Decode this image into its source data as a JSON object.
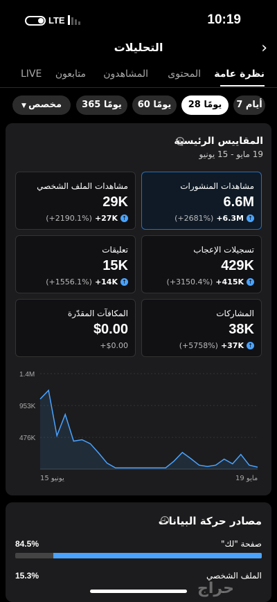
{
  "status": {
    "time": "10:19",
    "network": "LTE"
  },
  "header": {
    "title": "التحليلات",
    "back_icon": "chevron-right-icon"
  },
  "tabs": [
    {
      "label": "نظرة عامة",
      "active": true
    },
    {
      "label": "المحتوى",
      "active": false
    },
    {
      "label": "المشاهدون",
      "active": false
    },
    {
      "label": "متابعون",
      "active": false
    },
    {
      "label": "LIVE",
      "active": false
    }
  ],
  "ranges": [
    {
      "label": "7 أيام",
      "active": false
    },
    {
      "label": "28 يومًا",
      "active": true
    },
    {
      "label": "60 يومًا",
      "active": false
    },
    {
      "label": "365 يومًا",
      "active": false
    },
    {
      "label": "مخصص",
      "active": false
    }
  ],
  "key_metrics": {
    "title": "المقاييس الرئيسية",
    "date_range": "19 مايو - 15 يونيو",
    "items": [
      {
        "label": "مشاهدات المنشورات",
        "value": "6.6M",
        "delta": "+6.3M",
        "pct": "(+2681%)",
        "highlight": true
      },
      {
        "label": "مشاهدات الملف الشخصي",
        "value": "29K",
        "delta": "+27K",
        "pct": "(+2190.1%)",
        "highlight": false
      },
      {
        "label": "تسجيلات الإعجاب",
        "value": "429K",
        "delta": "+415K",
        "pct": "(+3150.4%)",
        "highlight": false
      },
      {
        "label": "تعليقات",
        "value": "15K",
        "delta": "+14K",
        "pct": "(+1556.1%)",
        "highlight": false
      },
      {
        "label": "المشاركات",
        "value": "38K",
        "delta": "+37K",
        "pct": "(+5758%)",
        "highlight": false
      },
      {
        "label": "المكافآت المقدّرة",
        "value": "$0.00",
        "delta": "+$0.00",
        "pct": "",
        "highlight": false
      }
    ]
  },
  "chart_data": {
    "type": "area",
    "y_ticks": [
      "1.4M",
      "953K",
      "476K"
    ],
    "ylim": [
      0,
      1430000
    ],
    "x_labels": {
      "start": "19 مايو",
      "end": "15 يونيو"
    },
    "grid": true,
    "color": "#4aa3ff",
    "values": [
      1050000,
      1180000,
      500000,
      820000,
      420000,
      440000,
      380000,
      240000,
      90000,
      20000,
      20000,
      20000,
      20000,
      20000,
      20000,
      20000,
      120000,
      250000,
      160000,
      60000,
      40000,
      60000,
      150000,
      80000,
      220000,
      60000,
      30000
    ]
  },
  "traffic": {
    "title": "مصادر حركة البيانات",
    "sources": [
      {
        "label": "صفحة \"لك\"",
        "pct": "84.5%",
        "fraction": 0.845
      },
      {
        "label": "الملف الشخصي",
        "pct": "15.3%",
        "fraction": 0.153
      }
    ]
  },
  "watermark": "حراج",
  "colors": {
    "accent": "#4aa3ff",
    "card": "#1c1c1e"
  }
}
